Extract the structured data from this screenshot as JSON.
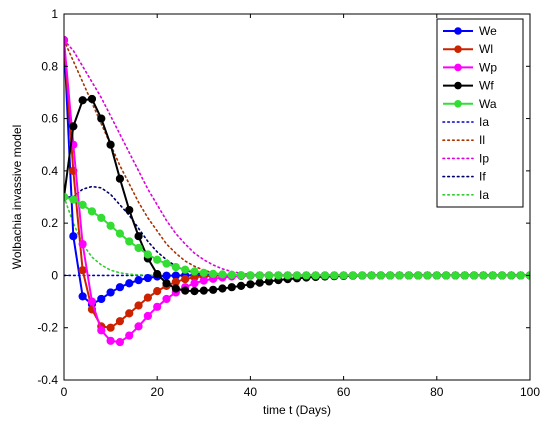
{
  "chart_data": {
    "type": "line",
    "xlabel": "time t (Days)",
    "ylabel": "Wolbachia invassive model",
    "xlim": [
      0,
      100
    ],
    "ylim": [
      -0.4,
      1
    ],
    "xticks": [
      0,
      20,
      40,
      60,
      80,
      100
    ],
    "yticks": [
      -0.4,
      -0.2,
      0,
      0.2,
      0.4,
      0.6,
      0.8,
      1
    ],
    "x_tick_labels": [
      "0",
      "20",
      "40",
      "60",
      "80",
      "100"
    ],
    "y_tick_labels": [
      "-0.4",
      "-0.2",
      "0",
      "0.2",
      "0.4",
      "0.6",
      "0.8",
      "1"
    ],
    "legend_position": "top-right",
    "grid": false,
    "x_markers": [
      0,
      2,
      4,
      6,
      8,
      10,
      12,
      14,
      16,
      18,
      20,
      22,
      24,
      26,
      28,
      30,
      32,
      34,
      36,
      38,
      40,
      42,
      44,
      46,
      48,
      50,
      52,
      54,
      56,
      58,
      60,
      62,
      64,
      66,
      68,
      70,
      72,
      74,
      76,
      78,
      80,
      82,
      84,
      86,
      88,
      90,
      92,
      94,
      96,
      98,
      100
    ],
    "series": [
      {
        "name": "We",
        "style": "solid",
        "marker": "dot",
        "color": "#0000ff",
        "points": [
          [
            0,
            0.9
          ],
          [
            2,
            0.15
          ],
          [
            4,
            -0.08
          ],
          [
            6,
            -0.11
          ],
          [
            8,
            -0.09
          ],
          [
            10,
            -0.065
          ],
          [
            12,
            -0.045
          ],
          [
            14,
            -0.03
          ],
          [
            16,
            -0.018
          ],
          [
            18,
            -0.01
          ],
          [
            20,
            -0.004
          ],
          [
            22,
            -0.001
          ],
          [
            26,
            0
          ],
          [
            30,
            0
          ],
          [
            100,
            0
          ]
        ]
      },
      {
        "name": "Wl",
        "style": "solid",
        "marker": "dot",
        "color": "#cc2200",
        "points": [
          [
            0,
            0.9
          ],
          [
            2,
            0.4
          ],
          [
            4,
            0.02
          ],
          [
            6,
            -0.13
          ],
          [
            8,
            -0.195
          ],
          [
            10,
            -0.2
          ],
          [
            12,
            -0.175
          ],
          [
            14,
            -0.145
          ],
          [
            16,
            -0.115
          ],
          [
            18,
            -0.085
          ],
          [
            20,
            -0.06
          ],
          [
            22,
            -0.04
          ],
          [
            24,
            -0.025
          ],
          [
            26,
            -0.014
          ],
          [
            28,
            -0.007
          ],
          [
            30,
            -0.003
          ],
          [
            34,
            0
          ],
          [
            100,
            0
          ]
        ]
      },
      {
        "name": "Wp",
        "style": "solid",
        "marker": "dot",
        "color": "#ff00ff",
        "points": [
          [
            0,
            0.9
          ],
          [
            2,
            0.5
          ],
          [
            4,
            0.12
          ],
          [
            6,
            -0.1
          ],
          [
            8,
            -0.21
          ],
          [
            10,
            -0.25
          ],
          [
            12,
            -0.255
          ],
          [
            14,
            -0.23
          ],
          [
            16,
            -0.195
          ],
          [
            18,
            -0.155
          ],
          [
            20,
            -0.12
          ],
          [
            22,
            -0.09
          ],
          [
            24,
            -0.065
          ],
          [
            26,
            -0.045
          ],
          [
            28,
            -0.03
          ],
          [
            30,
            -0.02
          ],
          [
            32,
            -0.013
          ],
          [
            34,
            -0.008
          ],
          [
            36,
            -0.004
          ],
          [
            38,
            -0.002
          ],
          [
            42,
            0
          ],
          [
            100,
            0
          ]
        ]
      },
      {
        "name": "Wf",
        "style": "solid",
        "marker": "dot",
        "color": "#000000",
        "points": [
          [
            0,
            0.3
          ],
          [
            2,
            0.57
          ],
          [
            4,
            0.67
          ],
          [
            6,
            0.675
          ],
          [
            8,
            0.6
          ],
          [
            10,
            0.5
          ],
          [
            12,
            0.37
          ],
          [
            14,
            0.25
          ],
          [
            16,
            0.15
          ],
          [
            18,
            0.065
          ],
          [
            20,
            0.005
          ],
          [
            22,
            -0.03
          ],
          [
            24,
            -0.05
          ],
          [
            26,
            -0.058
          ],
          [
            28,
            -0.06
          ],
          [
            30,
            -0.058
          ],
          [
            32,
            -0.055
          ],
          [
            34,
            -0.05
          ],
          [
            36,
            -0.045
          ],
          [
            38,
            -0.04
          ],
          [
            40,
            -0.034
          ],
          [
            42,
            -0.028
          ],
          [
            44,
            -0.023
          ],
          [
            46,
            -0.018
          ],
          [
            48,
            -0.014
          ],
          [
            50,
            -0.011
          ],
          [
            52,
            -0.008
          ],
          [
            54,
            -0.006
          ],
          [
            56,
            -0.004
          ],
          [
            58,
            -0.003
          ],
          [
            60,
            -0.002
          ],
          [
            62,
            -0.001
          ],
          [
            66,
            0
          ],
          [
            100,
            0
          ]
        ]
      },
      {
        "name": "Wa",
        "style": "solid",
        "marker": "dot",
        "color": "#33dd33",
        "points": [
          [
            0,
            0.3
          ],
          [
            2,
            0.29
          ],
          [
            4,
            0.27
          ],
          [
            6,
            0.245
          ],
          [
            8,
            0.22
          ],
          [
            10,
            0.19
          ],
          [
            12,
            0.16
          ],
          [
            14,
            0.13
          ],
          [
            16,
            0.105
          ],
          [
            18,
            0.08
          ],
          [
            20,
            0.06
          ],
          [
            22,
            0.045
          ],
          [
            24,
            0.032
          ],
          [
            26,
            0.022
          ],
          [
            28,
            0.015
          ],
          [
            30,
            0.01
          ],
          [
            32,
            0.006
          ],
          [
            34,
            0.004
          ],
          [
            36,
            0.002
          ],
          [
            38,
            0.001
          ],
          [
            42,
            0
          ],
          [
            100,
            0
          ]
        ]
      },
      {
        "name": "Ia",
        "style": "dotted",
        "color": "#0000cc",
        "points": [
          [
            0,
            0
          ],
          [
            100,
            0
          ]
        ]
      },
      {
        "name": "Il",
        "style": "dotted",
        "color": "#aa3300",
        "points": [
          [
            0,
            0.9
          ],
          [
            2,
            0.82
          ],
          [
            4,
            0.74
          ],
          [
            6,
            0.66
          ],
          [
            8,
            0.58
          ],
          [
            10,
            0.5
          ],
          [
            12,
            0.42
          ],
          [
            14,
            0.35
          ],
          [
            16,
            0.28
          ],
          [
            18,
            0.22
          ],
          [
            20,
            0.17
          ],
          [
            22,
            0.12
          ],
          [
            24,
            0.085
          ],
          [
            26,
            0.055
          ],
          [
            28,
            0.035
          ],
          [
            30,
            0.02
          ],
          [
            32,
            0.01
          ],
          [
            34,
            0.004
          ],
          [
            36,
            0.001
          ],
          [
            38,
            0
          ],
          [
            100,
            0
          ]
        ]
      },
      {
        "name": "Ip",
        "style": "dotted",
        "color": "#dd00dd",
        "points": [
          [
            0,
            0.9
          ],
          [
            2,
            0.86
          ],
          [
            4,
            0.8
          ],
          [
            6,
            0.74
          ],
          [
            8,
            0.68
          ],
          [
            10,
            0.61
          ],
          [
            12,
            0.54
          ],
          [
            14,
            0.47
          ],
          [
            16,
            0.4
          ],
          [
            18,
            0.33
          ],
          [
            20,
            0.27
          ],
          [
            22,
            0.21
          ],
          [
            24,
            0.16
          ],
          [
            26,
            0.12
          ],
          [
            28,
            0.085
          ],
          [
            30,
            0.06
          ],
          [
            32,
            0.04
          ],
          [
            34,
            0.025
          ],
          [
            36,
            0.015
          ],
          [
            38,
            0.008
          ],
          [
            40,
            0.004
          ],
          [
            42,
            0.002
          ],
          [
            46,
            0
          ],
          [
            100,
            0
          ]
        ]
      },
      {
        "name": "If",
        "style": "dotted",
        "color": "#000066",
        "points": [
          [
            0,
            0.3
          ],
          [
            2,
            0.3
          ],
          [
            4,
            0.33
          ],
          [
            6,
            0.34
          ],
          [
            8,
            0.335
          ],
          [
            10,
            0.31
          ],
          [
            12,
            0.27
          ],
          [
            14,
            0.23
          ],
          [
            16,
            0.18
          ],
          [
            18,
            0.13
          ],
          [
            20,
            0.09
          ],
          [
            22,
            0.06
          ],
          [
            24,
            0.035
          ],
          [
            26,
            0.02
          ],
          [
            28,
            0.01
          ],
          [
            30,
            0.005
          ],
          [
            32,
            0.002
          ],
          [
            36,
            0
          ],
          [
            100,
            0
          ]
        ]
      },
      {
        "name": "Ia",
        "style": "dotted",
        "color": "#33cc33",
        "points": [
          [
            0,
            0.3
          ],
          [
            2,
            0.2
          ],
          [
            4,
            0.12
          ],
          [
            6,
            0.07
          ],
          [
            8,
            0.04
          ],
          [
            10,
            0.02
          ],
          [
            12,
            0.01
          ],
          [
            14,
            0.005
          ],
          [
            16,
            0.002
          ],
          [
            20,
            0
          ],
          [
            100,
            0
          ]
        ]
      }
    ]
  }
}
